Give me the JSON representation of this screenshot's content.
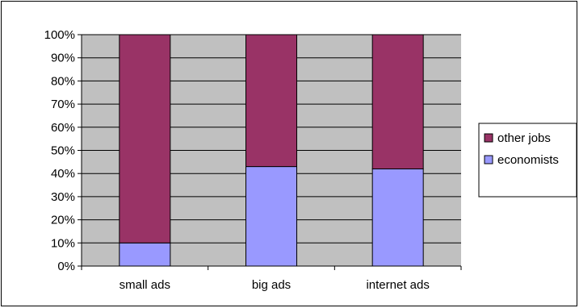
{
  "chart_data": {
    "type": "bar",
    "stacked": true,
    "normalized_percent": true,
    "categories": [
      "small ads",
      "big ads",
      "internet ads"
    ],
    "series": [
      {
        "name": "economists",
        "values": [
          10,
          43,
          42
        ],
        "color": "#9999ff"
      },
      {
        "name": "other jobs",
        "values": [
          90,
          57,
          58
        ],
        "color": "#993366"
      }
    ],
    "title": "",
    "xlabel": "",
    "ylabel": "",
    "ylim": [
      0,
      100
    ],
    "yticks": [
      "0%",
      "10%",
      "20%",
      "30%",
      "40%",
      "50%",
      "60%",
      "70%",
      "80%",
      "90%",
      "100%"
    ],
    "grid": true,
    "plot_background": "#c0c0c0",
    "legend": {
      "position": "right",
      "entries": [
        "other jobs",
        "economists"
      ]
    }
  }
}
